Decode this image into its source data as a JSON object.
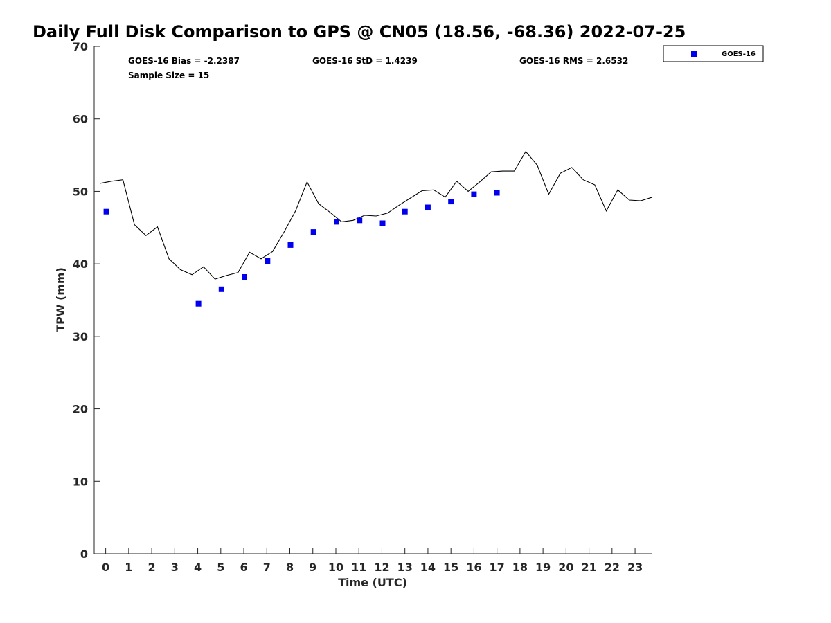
{
  "chart_data": {
    "type": "scatter",
    "title": "Daily Full Disk Comparison to GPS @ CN05 (18.56, -68.36) 2022-07-25",
    "xlabel": "Time (UTC)",
    "ylabel": "TPW (mm)",
    "xlim": [
      -0.5,
      23.75
    ],
    "ylim": [
      0,
      70
    ],
    "x_ticks": [
      0,
      1,
      2,
      3,
      4,
      5,
      6,
      7,
      8,
      9,
      10,
      11,
      12,
      13,
      14,
      15,
      16,
      17,
      18,
      19,
      20,
      21,
      22,
      23
    ],
    "x_tick_labels": [
      "0",
      "1",
      "2",
      "3",
      "4",
      "5",
      "6",
      "7",
      "8",
      "9",
      "10",
      "11",
      "12",
      "13",
      "14",
      "15",
      "16",
      "17",
      "18",
      "19",
      "20",
      "21",
      "22",
      "23"
    ],
    "y_ticks": [
      0,
      10,
      20,
      30,
      40,
      50,
      60,
      70
    ],
    "y_tick_labels": [
      "0",
      "10",
      "20",
      "30",
      "40",
      "50",
      "60",
      "70"
    ],
    "grid": false,
    "legend_position": "outside-top-right",
    "stats": {
      "bias": "GOES-16 Bias = -2.2387",
      "std": "GOES-16 StD = 1.4239",
      "rms": "GOES-16 RMS = 2.6532",
      "sample": "Sample Size = 15"
    },
    "series": [
      {
        "name": "GOES-16",
        "kind": "scatter",
        "marker": "square",
        "color": "#0000ee",
        "x": [
          0.03,
          4.03,
          5.03,
          6.03,
          7.03,
          8.03,
          9.03,
          10.03,
          11.03,
          12.03,
          13.0,
          14.0,
          15.0,
          16.0,
          17.0
        ],
        "y": [
          47.2,
          34.5,
          36.5,
          38.2,
          40.4,
          42.6,
          44.4,
          45.8,
          46.0,
          45.6,
          47.2,
          47.8,
          48.6,
          49.6,
          49.8
        ]
      },
      {
        "kind": "line",
        "color": "#000000",
        "x": [
          -0.25,
          0.25,
          0.75,
          1.25,
          1.75,
          2.25,
          2.75,
          3.25,
          3.75,
          4.25,
          4.75,
          5.25,
          5.75,
          6.25,
          6.75,
          7.25,
          7.75,
          8.25,
          8.75,
          9.25,
          9.75,
          10.25,
          10.75,
          11.25,
          11.75,
          12.25,
          12.75,
          13.25,
          13.75,
          14.25,
          14.75,
          15.25,
          15.75,
          16.25,
          16.75,
          17.25,
          17.75,
          18.25,
          18.75,
          19.25,
          19.75,
          20.25,
          20.75,
          21.25,
          21.75,
          22.25,
          22.75,
          23.25,
          23.75
        ],
        "y": [
          51.1,
          51.4,
          51.6,
          45.4,
          43.9,
          45.1,
          40.7,
          39.2,
          38.5,
          39.6,
          37.9,
          38.4,
          38.8,
          41.6,
          40.7,
          41.7,
          44.4,
          47.3,
          51.3,
          48.3,
          47.1,
          45.8,
          46.0,
          46.7,
          46.6,
          47.0,
          48.1,
          49.1,
          50.1,
          50.2,
          49.2,
          51.4,
          50.0,
          51.3,
          52.7,
          52.8,
          52.8,
          55.5,
          53.6,
          49.6,
          52.5,
          53.3,
          51.6,
          50.9,
          47.3,
          50.2,
          48.8,
          48.7,
          49.2
        ]
      }
    ]
  }
}
